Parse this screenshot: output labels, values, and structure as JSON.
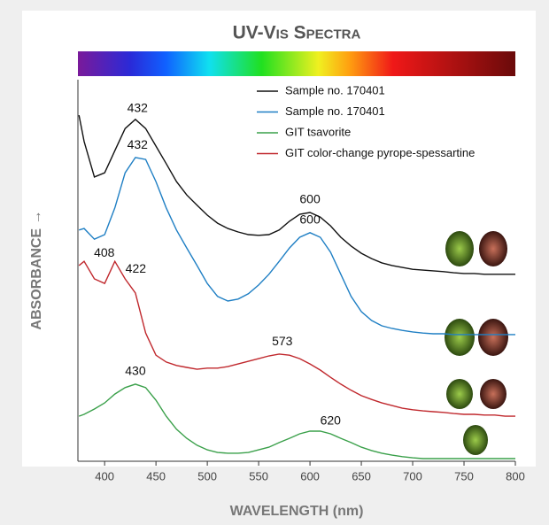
{
  "chart_data": {
    "type": "line",
    "title": "UV-Vis Spectra",
    "x_label": "WAVELENGTH (nm)",
    "y_label": "ABSORBANCE →",
    "x": [
      375,
      380,
      390,
      400,
      410,
      420,
      430,
      440,
      450,
      460,
      470,
      480,
      490,
      500,
      510,
      520,
      530,
      540,
      550,
      560,
      570,
      580,
      590,
      600,
      610,
      620,
      630,
      640,
      650,
      660,
      670,
      680,
      690,
      700,
      710,
      720,
      730,
      740,
      750,
      760,
      770,
      780,
      790,
      800
    ],
    "xlim": [
      374,
      800
    ],
    "xticks": [
      400,
      450,
      500,
      550,
      600,
      650,
      700,
      750,
      800
    ],
    "ylim": [
      0,
      100
    ],
    "legend": "upper right",
    "series": [
      {
        "name": "Sample no. 170401",
        "color": "#111111",
        "peaks": [
          432,
          600
        ],
        "values": [
          90.7,
          83.8,
          74.5,
          75.6,
          81.4,
          87.2,
          89.6,
          87.2,
          82.6,
          78.0,
          73.3,
          69.8,
          67.1,
          64.5,
          62.4,
          61.0,
          60.1,
          59.4,
          59.2,
          59.4,
          60.6,
          62.9,
          64.7,
          65.2,
          64.0,
          61.7,
          58.7,
          56.4,
          54.5,
          53.1,
          52.0,
          51.3,
          50.8,
          50.3,
          50.1,
          49.9,
          49.7,
          49.4,
          49.2,
          49.2,
          49.0,
          49.0,
          49.0,
          49.0
        ]
      },
      {
        "name": "Sample no. 170401",
        "color": "#1f7fc4",
        "peaks": [
          432,
          600
        ],
        "values": [
          60.6,
          61.0,
          58.2,
          59.4,
          66.4,
          75.6,
          79.6,
          79.1,
          73.3,
          66.4,
          60.6,
          55.9,
          51.3,
          46.6,
          43.2,
          42.0,
          42.5,
          43.9,
          46.2,
          49.0,
          52.4,
          55.9,
          58.7,
          59.9,
          58.7,
          54.8,
          49.0,
          43.2,
          39.2,
          36.9,
          35.5,
          34.8,
          34.3,
          33.9,
          33.6,
          33.4,
          33.4,
          33.2,
          33.2,
          33.2,
          33.2,
          33.2,
          33.2,
          33.2
        ]
      },
      {
        "name": "GIT tsavorite",
        "color": "#3aa04a",
        "peaks": [
          430,
          620
        ],
        "values": [
          11.8,
          12.3,
          13.7,
          15.3,
          17.6,
          19.3,
          20.2,
          19.3,
          16.0,
          11.8,
          8.4,
          6.0,
          4.2,
          3.0,
          2.3,
          2.1,
          2.1,
          2.3,
          3.0,
          3.7,
          4.9,
          6.0,
          7.2,
          7.9,
          7.9,
          7.2,
          6.0,
          4.9,
          3.7,
          2.8,
          2.1,
          1.6,
          1.2,
          0.9,
          0.7,
          0.7,
          0.7,
          0.7,
          0.7,
          0.7,
          0.7,
          0.7,
          0.7,
          0.7
        ]
      },
      {
        "name": "GIT color-change pyrope-spessartine",
        "color": "#c0282d",
        "peaks": [
          408,
          422,
          573
        ],
        "values": [
          51.3,
          52.4,
          47.8,
          46.6,
          52.4,
          47.8,
          44.1,
          33.6,
          27.8,
          26.0,
          25.1,
          24.6,
          24.1,
          24.4,
          24.4,
          24.8,
          25.5,
          26.2,
          26.9,
          27.6,
          28.1,
          27.8,
          26.9,
          25.5,
          23.9,
          22.0,
          20.2,
          18.6,
          17.2,
          16.2,
          15.3,
          14.6,
          13.9,
          13.5,
          13.2,
          13.0,
          12.8,
          12.5,
          12.3,
          12.3,
          12.1,
          12.1,
          11.8,
          11.8
        ]
      }
    ]
  }
}
